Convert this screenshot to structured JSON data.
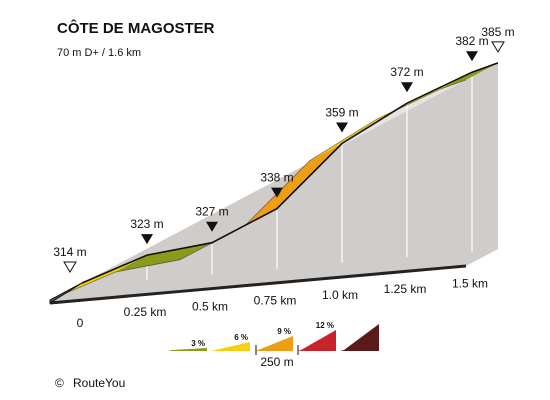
{
  "header": {
    "title": "CÔTE DE MAGOSTER",
    "subtitle": "70 m D+ / 1.6 km"
  },
  "credit": {
    "symbol": "©",
    "label": "RouteYou"
  },
  "chart_data": {
    "type": "area",
    "title": "CÔTE DE MAGOSTER",
    "subtitle": "70 m D+ / 1.6 km",
    "x": [
      0,
      0.25,
      0.5,
      0.75,
      1.0,
      1.25,
      1.5,
      1.6
    ],
    "y": [
      314,
      323,
      327,
      338,
      359,
      372,
      382,
      385
    ],
    "x_unit": "km",
    "y_unit": "m",
    "x_ticks": [
      "0",
      "0.25 km",
      "0.5 km",
      "0.75 km",
      "1.0 km",
      "1.25 km",
      "1.5 km"
    ],
    "x_tick_values": [
      0,
      0.25,
      0.5,
      0.75,
      1.0,
      1.25,
      1.5
    ],
    "elevation_labels": [
      "314 m",
      "323 m",
      "327 m",
      "338 m",
      "359 m",
      "372 m",
      "382 m",
      "385 m"
    ],
    "start_end_markers": [
      "start",
      "none",
      "none",
      "none",
      "none",
      "none",
      "none",
      "end"
    ],
    "segments": [
      {
        "from": 0,
        "to": 0.25,
        "gradient_class": "6 %"
      },
      {
        "from": 0.25,
        "to": 0.5,
        "gradient_class": "3 %"
      },
      {
        "from": 0.5,
        "to": 0.75,
        "gradient_class": "6 %"
      },
      {
        "from": 0.75,
        "to": 1.0,
        "gradient_class": "9 %"
      },
      {
        "from": 1.0,
        "to": 1.25,
        "gradient_class": "6 %"
      },
      {
        "from": 1.25,
        "to": 1.5,
        "gradient_class": "6 %"
      },
      {
        "from": 1.5,
        "to": 1.6,
        "gradient_class": "3 %"
      }
    ],
    "legend": {
      "placement": "bottom",
      "entries": [
        {
          "label": "3 %",
          "color": "#8a9a1a"
        },
        {
          "label": "6 %",
          "color": "#f7cf0e"
        },
        {
          "label": "9 %",
          "color": "#ee9e15"
        },
        {
          "label": "12 %",
          "color": "#c8232b"
        },
        {
          "label": "",
          "color": "#5a1a1a"
        }
      ],
      "scale_label": "250 m"
    },
    "colors": {
      "side_wall": "#e6e3e1",
      "base_dark": "#cfccca",
      "outline": "#111111"
    }
  }
}
